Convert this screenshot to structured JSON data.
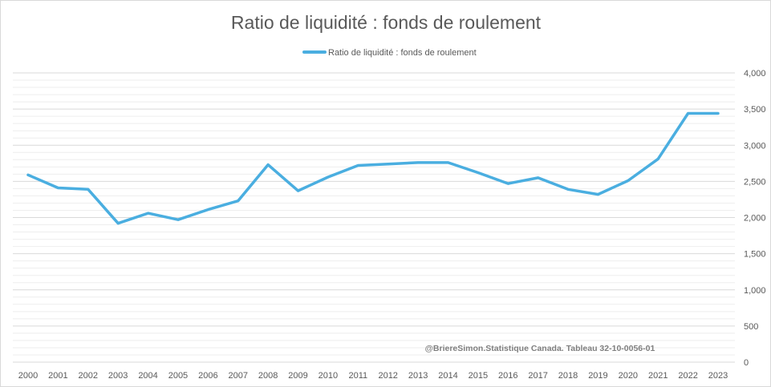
{
  "chart_data": {
    "type": "line",
    "title": "Ratio de liquidité : fonds de roulement",
    "legend_position": "top-center",
    "grid": true,
    "y_axis_position": "right",
    "ylim": [
      0,
      4000
    ],
    "y_ticks": [
      "4,000",
      "3,500",
      "3,000",
      "2,500",
      "2,000",
      "1,500",
      "1,000",
      "500",
      "0"
    ],
    "y_tick_values": [
      4000,
      3500,
      3000,
      2500,
      2000,
      1500,
      1000,
      500,
      0
    ],
    "categories": [
      "2000",
      "2001",
      "2002",
      "2003",
      "2004",
      "2005",
      "2006",
      "2007",
      "2008",
      "2009",
      "2010",
      "2011",
      "2012",
      "2013",
      "2014",
      "2015",
      "2016",
      "2017",
      "2018",
      "2019",
      "2020",
      "2021",
      "2022",
      "2023"
    ],
    "series": [
      {
        "name": "Ratio de liquidité : fonds de roulement",
        "color": "#4aaee0",
        "values": [
          2590,
          2410,
          2390,
          1920,
          2060,
          1970,
          2110,
          2230,
          2730,
          2370,
          2560,
          2720,
          2740,
          2760,
          2760,
          2620,
          2470,
          2550,
          2390,
          2320,
          2510,
          2810,
          3440,
          3440
        ]
      }
    ],
    "annotation": "@BriereSimon.Statistique Canada. Tableau 32-10-0056-01"
  },
  "colors": {
    "line": "#4aaee0",
    "gridline": "#d9d9d9",
    "text": "#595959"
  }
}
